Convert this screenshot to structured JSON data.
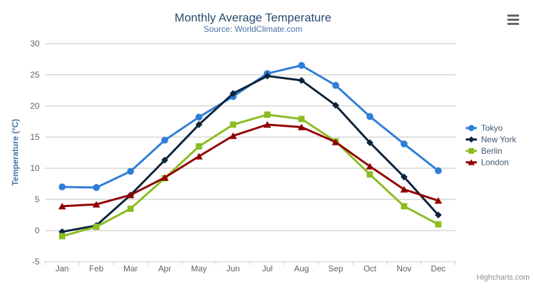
{
  "chart_data": {
    "type": "line",
    "title": "Monthly Average Temperature",
    "subtitle": "Source: WorldClimate.com",
    "xlabel": "",
    "ylabel": "Temperature (°C)",
    "categories": [
      "Jan",
      "Feb",
      "Mar",
      "Apr",
      "May",
      "Jun",
      "Jul",
      "Aug",
      "Sep",
      "Oct",
      "Nov",
      "Dec"
    ],
    "ylim": [
      -5,
      30
    ],
    "ytick_step": 5,
    "grid": true,
    "legend_position": "right",
    "series": [
      {
        "name": "Tokyo",
        "color": "#2f7ed8",
        "marker": "circle",
        "values": [
          7.0,
          6.9,
          9.5,
          14.5,
          18.2,
          21.5,
          25.2,
          26.5,
          23.3,
          18.3,
          13.9,
          9.6
        ]
      },
      {
        "name": "New York",
        "color": "#0d233a",
        "marker": "diamond",
        "values": [
          -0.2,
          0.8,
          5.7,
          11.3,
          17.0,
          22.0,
          24.8,
          24.1,
          20.1,
          14.1,
          8.6,
          2.5
        ]
      },
      {
        "name": "Berlin",
        "color": "#8bbc21",
        "marker": "square",
        "values": [
          -0.9,
          0.6,
          3.5,
          8.4,
          13.5,
          17.0,
          18.6,
          17.9,
          14.3,
          9.0,
          3.9,
          1.0
        ]
      },
      {
        "name": "London",
        "color": "#910000",
        "marker": "triangle",
        "values": [
          3.9,
          4.2,
          5.7,
          8.5,
          11.9,
          15.2,
          17.0,
          16.6,
          14.2,
          10.3,
          6.6,
          4.8
        ]
      }
    ],
    "credits": "Highcharts.com"
  },
  "colors": {
    "background": "#ffffff",
    "grid": "#c0c0c0",
    "axis_line": "#c0d0e0",
    "tick": "#c0d0e0",
    "axis_label": "#606060",
    "title": "#274b6d",
    "subtitle": "#4572a7",
    "axis_title": "#4572a7",
    "legend_text": "#3e576f",
    "credits": "#909090",
    "menu_icon": "#666666"
  }
}
